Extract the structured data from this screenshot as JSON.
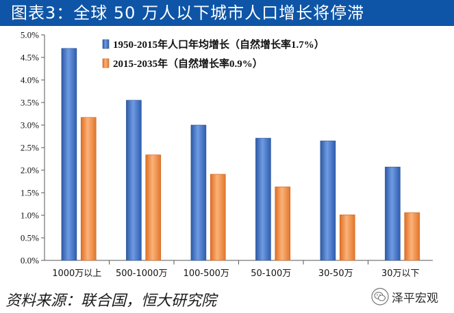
{
  "title": "图表3：全球 50 万人以下城市人口增长将停滞",
  "source": "资料来源：联合国，恒大研究院",
  "watermark": {
    "text": "泽平宏观",
    "icon": "wechat-icon"
  },
  "chart_data": {
    "type": "bar",
    "categories": [
      "1000万以上",
      "500-1000万",
      "100-500万",
      "50-100万",
      "30-50万",
      "30万以下"
    ],
    "series": [
      {
        "name": "1950-2015年人口年均增长（自然增长率1.7%）",
        "color": "#3b6ec8",
        "values": [
          0.047,
          0.0355,
          0.03,
          0.0271,
          0.0265,
          0.0207
        ]
      },
      {
        "name": "2015-2035年（自然增长率0.9%）",
        "color": "#f0883e",
        "values": [
          0.0317,
          0.0234,
          0.0191,
          0.0163,
          0.0101,
          0.0106
        ]
      }
    ],
    "ylim": [
      0,
      0.05
    ],
    "yticks": [
      "0.0%",
      "0.5%",
      "1.0%",
      "1.5%",
      "2.0%",
      "2.5%",
      "3.0%",
      "3.5%",
      "4.0%",
      "4.5%",
      "5.0%"
    ],
    "grid": false,
    "legend": "top-left"
  }
}
